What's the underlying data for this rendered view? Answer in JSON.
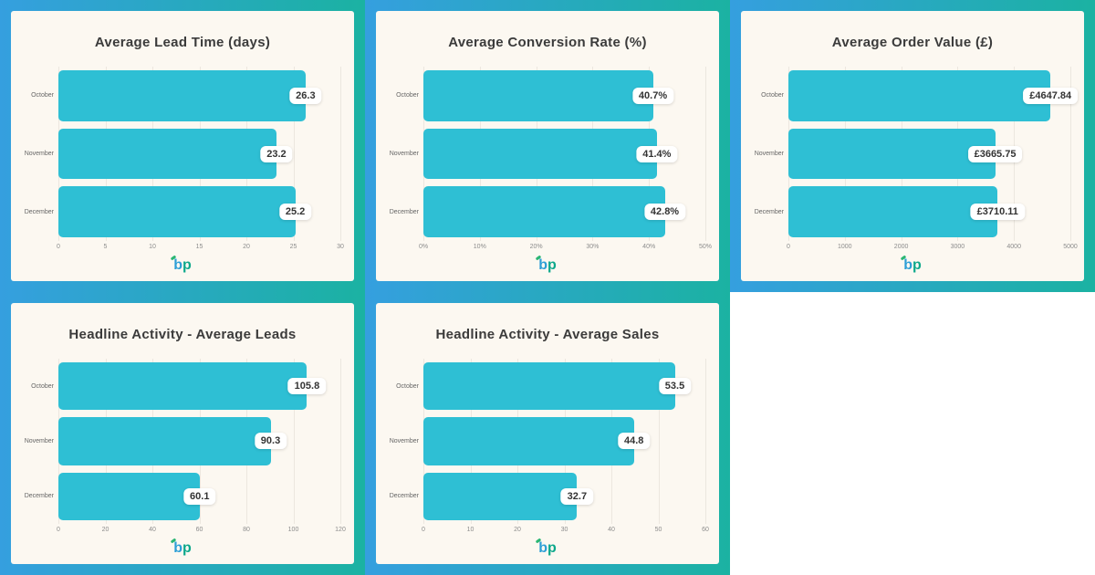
{
  "colors": {
    "tile_gradient_start": "#359fdf",
    "tile_gradient_end": "#1bb2a2",
    "card_bg": "#fcf8f1",
    "bar": "#2ebfd4",
    "pill_bg": "#ffffff",
    "pill_text": "#333333",
    "title_text": "#3b3b3b",
    "category_text": "#666666",
    "tick_text": "#8c8c8c",
    "gridline": "#ece7df",
    "logo_b": "#2d9fd6",
    "logo_p": "#0ca88b",
    "logo_accent": "#2bb673"
  },
  "logo": {
    "b": "b",
    "p": "p"
  },
  "chart_data": [
    {
      "type": "bar",
      "orientation": "horizontal",
      "title": "Average Lead Time (days)",
      "categories": [
        "October",
        "November",
        "December"
      ],
      "values": [
        26.3,
        23.2,
        25.2
      ],
      "value_labels": [
        "26.3",
        "23.2",
        "25.2"
      ],
      "tick_labels": [
        "0",
        "5",
        "10",
        "15",
        "20",
        "25",
        "30"
      ],
      "xlim": [
        0,
        30
      ],
      "grid": true,
      "legend": false
    },
    {
      "type": "bar",
      "orientation": "horizontal",
      "title": "Average Conversion Rate (%)",
      "categories": [
        "October",
        "November",
        "December"
      ],
      "values": [
        40.7,
        41.4,
        42.8
      ],
      "value_labels": [
        "40.7%",
        "41.4%",
        "42.8%"
      ],
      "tick_labels": [
        "0%",
        "10%",
        "20%",
        "30%",
        "40%",
        "50%"
      ],
      "xlim": [
        0,
        50
      ],
      "grid": true,
      "legend": false
    },
    {
      "type": "bar",
      "orientation": "horizontal",
      "title": "Average Order Value (£)",
      "categories": [
        "October",
        "November",
        "December"
      ],
      "values": [
        4647.84,
        3665.75,
        3710.11
      ],
      "value_labels": [
        "£4647.84",
        "£3665.75",
        "£3710.11"
      ],
      "tick_labels": [
        "0",
        "1000",
        "2000",
        "3000",
        "4000",
        "5000"
      ],
      "xlim": [
        0,
        5000
      ],
      "grid": true,
      "legend": false
    },
    {
      "type": "bar",
      "orientation": "horizontal",
      "title": "Headline Activity - Average Leads",
      "categories": [
        "October",
        "November",
        "December"
      ],
      "values": [
        105.8,
        90.3,
        60.1
      ],
      "value_labels": [
        "105.8",
        "90.3",
        "60.1"
      ],
      "tick_labels": [
        "0",
        "20",
        "40",
        "60",
        "80",
        "100",
        "120"
      ],
      "xlim": [
        0,
        120
      ],
      "grid": true,
      "legend": false
    },
    {
      "type": "bar",
      "orientation": "horizontal",
      "title": "Headline Activity - Average Sales",
      "categories": [
        "October",
        "November",
        "December"
      ],
      "values": [
        53.5,
        44.8,
        32.7
      ],
      "value_labels": [
        "53.5",
        "44.8",
        "32.7"
      ],
      "tick_labels": [
        "0",
        "10",
        "20",
        "30",
        "40",
        "50",
        "60"
      ],
      "xlim": [
        0,
        60
      ],
      "grid": true,
      "legend": false
    }
  ]
}
